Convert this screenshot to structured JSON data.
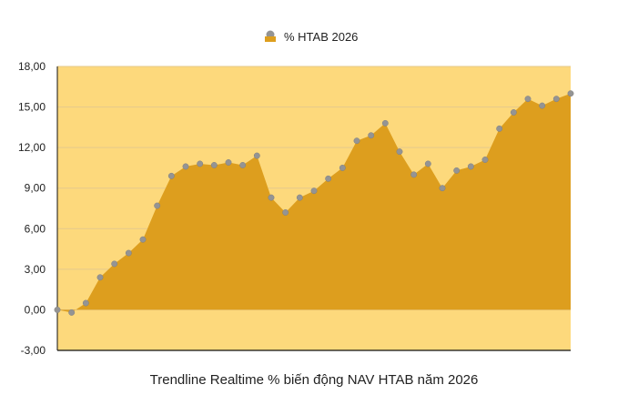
{
  "chart_data": {
    "type": "area",
    "title": "",
    "xlabel": "Trendline Realtime % biến động NAV HTAB năm 2026",
    "ylabel": "",
    "ylim": [
      -3,
      18
    ],
    "yticks": [
      "18,00",
      "15,00",
      "12,00",
      "9,00",
      "6,00",
      "3,00",
      "0,00",
      "-3,00"
    ],
    "ytick_values": [
      18,
      15,
      12,
      9,
      6,
      3,
      0,
      -3
    ],
    "grid": true,
    "legend_position": "top-center",
    "series": [
      {
        "name": "% HTAB 2026",
        "values": [
          0.0,
          -0.2,
          0.5,
          2.4,
          3.4,
          4.2,
          5.2,
          7.7,
          9.9,
          10.6,
          10.8,
          10.7,
          10.9,
          10.7,
          11.4,
          8.3,
          7.2,
          8.3,
          8.8,
          9.7,
          10.5,
          12.5,
          12.9,
          13.8,
          11.7,
          10.0,
          10.8,
          9.0,
          10.3,
          10.6,
          11.1,
          13.4,
          14.6,
          15.6,
          15.1,
          15.6,
          16.0
        ]
      }
    ],
    "colors": {
      "area_fill": "#dd9e1e",
      "plot_background": "#fdd97c",
      "marker": "#949494",
      "gridline": "#e5c98b",
      "axis": "#111111"
    }
  }
}
